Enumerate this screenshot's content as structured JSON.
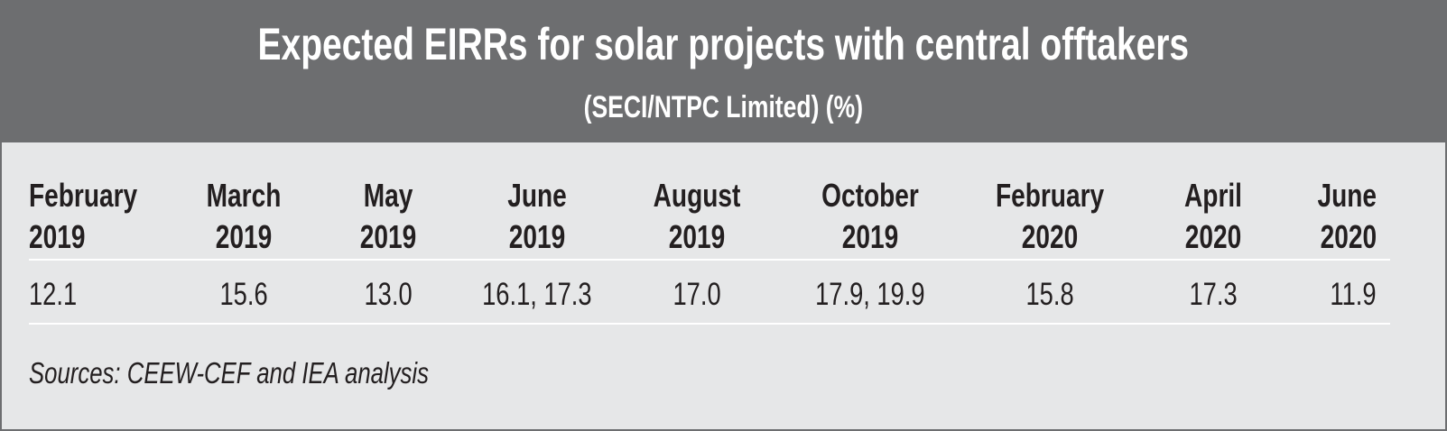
{
  "title": "Expected EIRRs for solar projects with central offtakers",
  "subtitle": "(SECI/NTPC Limited) (%)",
  "chart_data": {
    "type": "table",
    "title": "Expected EIRRs for solar projects with central offtakers (SECI/NTPC Limited) (%)",
    "columns": [
      {
        "month": "February",
        "year": "2019",
        "value": "12.1"
      },
      {
        "month": "March",
        "year": "2019",
        "value": "15.6"
      },
      {
        "month": "May",
        "year": "2019",
        "value": "13.0"
      },
      {
        "month": "June",
        "year": "2019",
        "value": "16.1, 17.3"
      },
      {
        "month": "August",
        "year": "2019",
        "value": "17.0"
      },
      {
        "month": "October",
        "year": "2019",
        "value": "17.9, 19.9"
      },
      {
        "month": "February",
        "year": "2020",
        "value": "15.8"
      },
      {
        "month": "April",
        "year": "2020",
        "value": "17.3"
      },
      {
        "month": "June",
        "year": "2020",
        "value": "11.9"
      }
    ]
  },
  "source": "Sources: CEEW-CEF and IEA analysis",
  "colors": {
    "header_bg": "#6d6e70",
    "body_bg": "#e6e7e8",
    "text": "#231f20"
  }
}
